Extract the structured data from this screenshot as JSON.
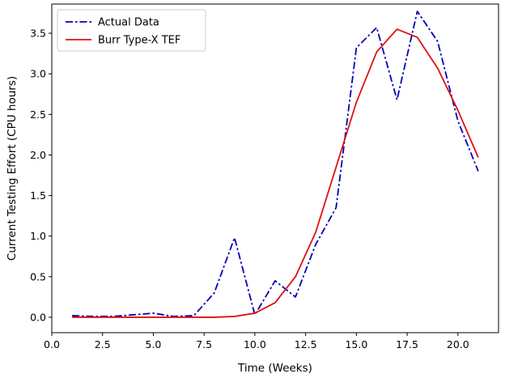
{
  "chart_data": {
    "type": "line",
    "title": "",
    "xlabel": "Time (Weeks)",
    "ylabel": "Current Testing Effort (CPU hours)",
    "xlim": [
      0.0,
      22.0
    ],
    "ylim": [
      -0.19,
      3.86
    ],
    "xticks": [
      0.0,
      2.5,
      5.0,
      7.5,
      10.0,
      12.5,
      15.0,
      17.5,
      20.0
    ],
    "xtick_labels": [
      "0.0",
      "2.5",
      "5.0",
      "7.5",
      "10.0",
      "12.5",
      "15.0",
      "17.5",
      "20.0"
    ],
    "yticks": [
      0.0,
      0.5,
      1.0,
      1.5,
      2.0,
      2.5,
      3.0,
      3.5
    ],
    "ytick_labels": [
      "0.0",
      "0.5",
      "1.0",
      "1.5",
      "2.0",
      "2.5",
      "3.0",
      "3.5"
    ],
    "grid": false,
    "legend_position": "top-left",
    "series": [
      {
        "name": "Actual Data",
        "color": "#0000b8",
        "line_style": "dash-dot",
        "x": [
          1,
          2,
          3,
          4,
          5,
          6,
          7,
          8,
          9,
          10,
          11,
          12,
          13,
          14,
          15,
          16,
          17,
          18,
          19,
          20,
          21
        ],
        "y": [
          0.02,
          0.01,
          0.01,
          0.03,
          0.05,
          0.01,
          0.02,
          0.3,
          0.98,
          0.03,
          0.45,
          0.25,
          0.9,
          1.35,
          3.32,
          3.57,
          2.68,
          3.77,
          3.4,
          2.42,
          1.8
        ]
      },
      {
        "name": "Burr Type-X TEF",
        "color": "#e01010",
        "line_style": "solid",
        "x": [
          1,
          2,
          3,
          4,
          5,
          6,
          7,
          8,
          9,
          10,
          11,
          12,
          13,
          14,
          15,
          16,
          17,
          18,
          19,
          20,
          21
        ],
        "y": [
          0.0,
          0.0,
          0.0,
          0.0,
          0.0,
          0.0,
          0.0,
          0.0,
          0.01,
          0.05,
          0.18,
          0.5,
          1.05,
          1.85,
          2.65,
          3.27,
          3.55,
          3.45,
          3.07,
          2.55,
          1.97
        ]
      }
    ]
  }
}
